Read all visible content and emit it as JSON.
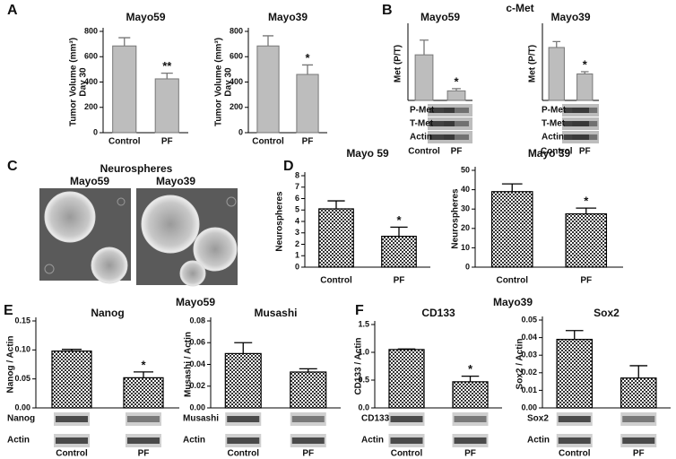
{
  "panel_letters": [
    "A",
    "B",
    "C",
    "D",
    "E",
    "F"
  ],
  "headers": {
    "b": "c-Met",
    "c": "Neurospheres",
    "c_left": "Mayo59",
    "c_right": "Mayo39",
    "e": "Mayo59",
    "f": "Mayo39"
  },
  "chart_data": [
    {
      "type": "bar",
      "title": "Mayo59",
      "ylabel": [
        "Tumor Volume (mm³)",
        "Day 30"
      ],
      "categories": [
        "Control",
        "PF"
      ],
      "values": [
        685,
        425
      ],
      "errors": [
        65,
        45
      ],
      "annotations": [
        null,
        "**"
      ],
      "ylim": [
        0,
        800
      ],
      "yticks": [
        0,
        200,
        400,
        600,
        800
      ],
      "fill": "solid",
      "color": "#bdbdbd"
    },
    {
      "type": "bar",
      "title": "Mayo39",
      "ylabel": [
        "Tumor Volume (mm³)",
        "Day 30"
      ],
      "categories": [
        "Control",
        "PF"
      ],
      "values": [
        685,
        460
      ],
      "errors": [
        80,
        75
      ],
      "annotations": [
        null,
        "*"
      ],
      "ylim": [
        0,
        800
      ],
      "yticks": [
        0,
        200,
        400,
        600,
        800
      ],
      "fill": "solid",
      "color": "#bdbdbd"
    },
    {
      "type": "bar",
      "title": "Mayo59",
      "ylabel": "Met (P/T)",
      "categories": [
        "Control",
        "PF"
      ],
      "values": [
        0.62,
        0.13
      ],
      "errors": [
        0.2,
        0.03
      ],
      "annotations": [
        null,
        "*"
      ],
      "ylim": [
        0,
        1
      ],
      "fill": "solid",
      "color": "#bdbdbd",
      "blots": [
        "P-Met",
        "T-Met",
        "Actin"
      ]
    },
    {
      "type": "bar",
      "title": "Mayo39",
      "ylabel": "Met (P/T)",
      "categories": [
        "Control",
        "PF"
      ],
      "values": [
        0.72,
        0.36
      ],
      "errors": [
        0.08,
        0.03
      ],
      "annotations": [
        null,
        "*"
      ],
      "ylim": [
        0,
        1
      ],
      "fill": "solid",
      "color": "#bdbdbd",
      "blots": [
        "P-Met",
        "T-Met",
        "Actin"
      ]
    },
    {
      "type": "bar",
      "title": "Mayo 59",
      "ylabel": "Neurospheres",
      "categories": [
        "Control",
        "PF"
      ],
      "values": [
        5.1,
        2.7
      ],
      "errors": [
        0.7,
        0.8
      ],
      "annotations": [
        null,
        "*"
      ],
      "ylim": [
        0,
        8
      ],
      "yticks": [
        0,
        1,
        2,
        3,
        4,
        5,
        6,
        7,
        8
      ],
      "fill": "checker",
      "color": "#333333"
    },
    {
      "type": "bar",
      "title": "Mayo 39",
      "ylabel": "Neurospheres",
      "categories": [
        "Control",
        "PF"
      ],
      "values": [
        39,
        27.5
      ],
      "errors": [
        4,
        3
      ],
      "annotations": [
        null,
        "*"
      ],
      "ylim": [
        0,
        50
      ],
      "yticks": [
        0,
        10,
        20,
        30,
        40,
        50
      ],
      "fill": "checker",
      "color": "#333333"
    },
    {
      "type": "bar",
      "title": "Nanog",
      "ylabel": "Nanog / Actin",
      "categories": [
        "Control",
        "PF"
      ],
      "values": [
        0.098,
        0.052
      ],
      "errors": [
        0.003,
        0.01
      ],
      "annotations": [
        null,
        "*"
      ],
      "ylim": [
        0,
        0.15
      ],
      "yticks": [
        {
          "value": 0,
          "label": "0.00"
        },
        0.05,
        {
          "value": 0.1,
          "label": "0.10"
        },
        0.15
      ],
      "fill": "checker",
      "color": "#333333",
      "blots": [
        "Nanog",
        "Actin"
      ]
    },
    {
      "type": "bar",
      "title": "Musashi",
      "ylabel": "Musashi / Actin",
      "categories": [
        "Control",
        "PF"
      ],
      "values": [
        0.05,
        0.033
      ],
      "errors": [
        0.01,
        0.003
      ],
      "ylim": [
        0,
        0.08
      ],
      "yticks": [
        {
          "value": 0,
          "label": "0.00"
        },
        0.02,
        0.04,
        0.06,
        0.08
      ],
      "fill": "checker",
      "color": "#333333",
      "blots": [
        "Musashi",
        "Actin"
      ]
    },
    {
      "type": "bar",
      "title": "CD133",
      "ylabel": "CD133 / Actin",
      "categories": [
        "Control",
        "PF"
      ],
      "values": [
        1.05,
        0.47
      ],
      "errors": [
        0.01,
        0.1
      ],
      "annotations": [
        null,
        "*"
      ],
      "ylim": [
        0,
        1.5
      ],
      "yticks": [
        {
          "value": 0,
          "label": "0.0"
        },
        0.5,
        {
          "value": 1,
          "label": "1.0"
        },
        1.5
      ],
      "fill": "checker",
      "color": "#333333",
      "blots": [
        "CD133",
        "Actin"
      ]
    },
    {
      "type": "bar",
      "title": "Sox2",
      "ylabel": "Sox2 / Actin",
      "categories": [
        "Control",
        "PF"
      ],
      "values": [
        0.039,
        0.017
      ],
      "errors": [
        0.005,
        0.007
      ],
      "ylim": [
        0,
        0.05
      ],
      "yticks": [
        {
          "value": 0,
          "label": "0.00"
        },
        0.01,
        0.02,
        0.03,
        0.04,
        0.05
      ],
      "fill": "checker",
      "color": "#333333",
      "blots": [
        "Sox2",
        "Actin"
      ]
    }
  ]
}
